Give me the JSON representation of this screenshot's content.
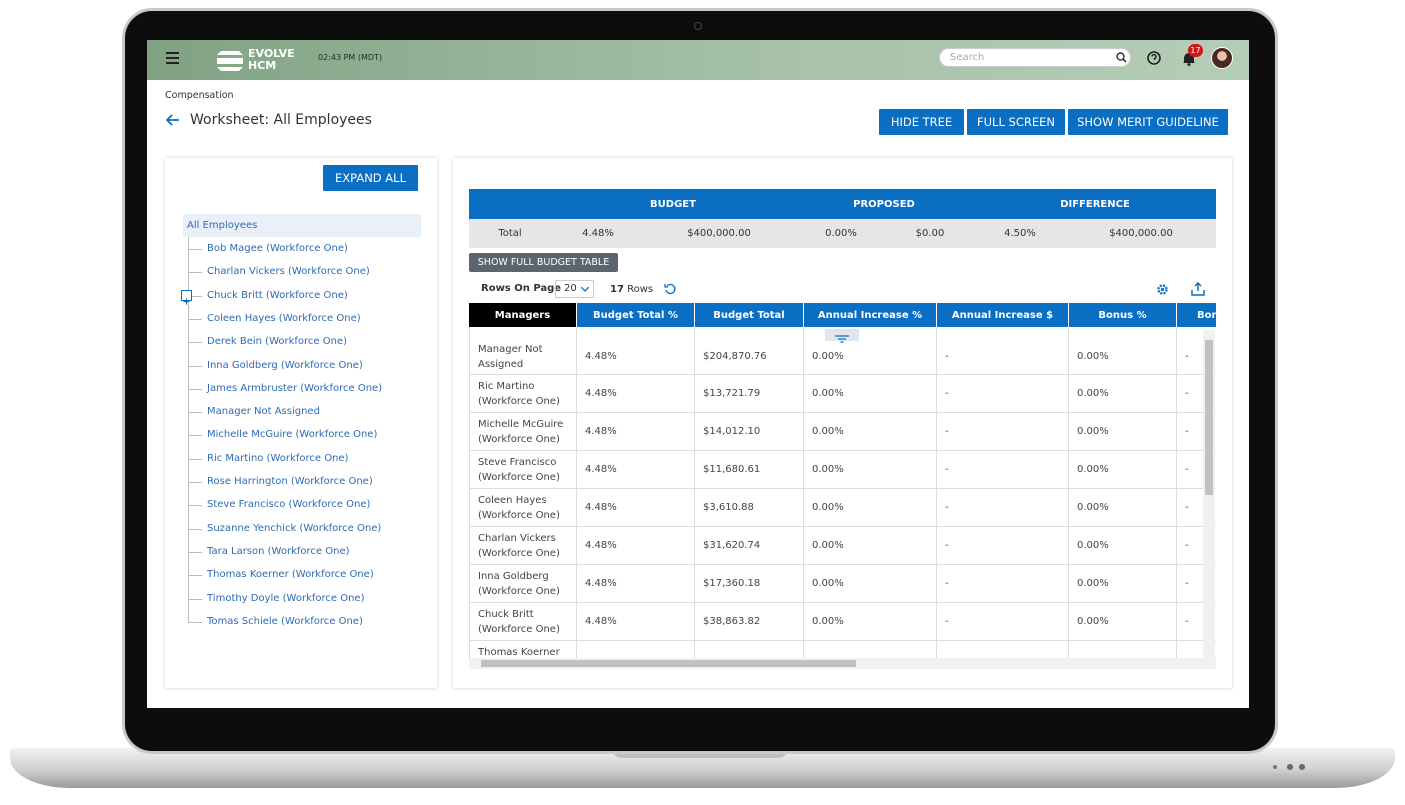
{
  "header": {
    "logo_top": "EVOLVE",
    "logo_bottom": "HCM",
    "time": "02:43 PM (MDT)",
    "search_placeholder": "Search",
    "notification_count": 17
  },
  "breadcrumb": "Compensation",
  "title": "Worksheet: All Employees",
  "toolbar_buttons": [
    "HIDE TREE",
    "FULL SCREEN",
    "SHOW MERIT GUIDELINE"
  ],
  "tree": {
    "expand_button": "EXPAND ALL",
    "root": "All Employees",
    "children": [
      "Bob Magee (Workforce One)",
      "Charlan Vickers (Workforce One)",
      "Chuck Britt (Workforce One)",
      "Coleen Hayes (Workforce One)",
      "Derek Bein (Workforce One)",
      "Inna Goldberg (Workforce One)",
      "James Armbruster (Workforce One)",
      "Manager Not Assigned",
      "Michelle McGuire (Workforce One)",
      "Ric Martino (Workforce One)",
      "Rose Harrington (Workforce One)",
      "Steve Francisco (Workforce One)",
      "Suzanne Yenchick (Workforce One)",
      "Tara Larson (Workforce One)",
      "Thomas Koerner (Workforce One)",
      "Timothy Doyle (Workforce One)",
      "Tomas Schiele (Workforce One)"
    ]
  },
  "budget_summary": {
    "headers": [
      "BUDGET",
      "PROPOSED",
      "DIFFERENCE"
    ],
    "total_row": [
      "Total",
      "4.48%",
      "$400,000.00",
      "0.00%",
      "$0.00",
      "4.50%",
      "$400,000.00"
    ]
  },
  "budget_button": "SHOW FULL BUDGET TABLE",
  "pager": {
    "label": "Rows On Page",
    "page_size": 20,
    "row_count": 17,
    "row_count_label": "Rows"
  },
  "table": {
    "columns": [
      "Managers",
      "Budget Total %",
      "Budget Total",
      "Annual Increase %",
      "Annual Increase $",
      "Bonus %",
      "Bon"
    ],
    "rows": [
      [
        "Manager Not Assigned",
        "4.48%",
        "$204,870.76",
        "0.00%",
        "-",
        "0.00%",
        "-"
      ],
      [
        "Ric Martino (Workforce One)",
        "4.48%",
        "$13,721.79",
        "0.00%",
        "-",
        "0.00%",
        "-"
      ],
      [
        "Michelle McGuire (Workforce One)",
        "4.48%",
        "$14,012.10",
        "0.00%",
        "-",
        "0.00%",
        "-"
      ],
      [
        "Steve Francisco (Workforce One)",
        "4.48%",
        "$11,680.61",
        "0.00%",
        "-",
        "0.00%",
        "-"
      ],
      [
        "Coleen Hayes (Workforce One)",
        "4.48%",
        "$3,610.88",
        "0.00%",
        "-",
        "0.00%",
        "-"
      ],
      [
        "Charlan Vickers (Workforce One)",
        "4.48%",
        "$31,620.74",
        "0.00%",
        "-",
        "0.00%",
        "-"
      ],
      [
        "Inna Goldberg (Workforce One)",
        "4.48%",
        "$17,360.18",
        "0.00%",
        "-",
        "0.00%",
        "-"
      ],
      [
        "Chuck Britt (Workforce One)",
        "4.48%",
        "$38,863.82",
        "0.00%",
        "-",
        "0.00%",
        "-"
      ],
      [
        "Thomas Koerner (Workforce One)"
      ]
    ]
  }
}
